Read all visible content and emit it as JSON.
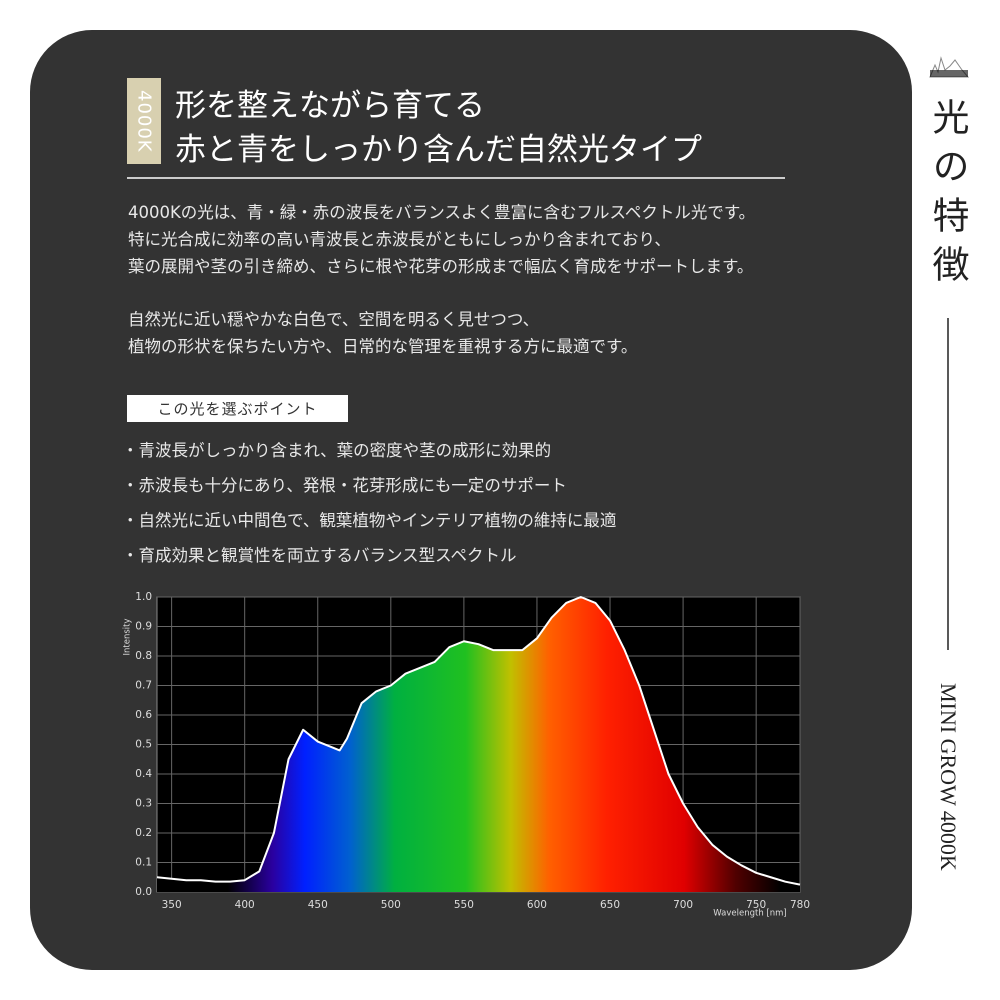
{
  "badge": "4000K",
  "title": [
    "形を整えながら育てる",
    "赤と青をしっかり含んだ自然光タイプ"
  ],
  "paragraphs": [
    [
      "4000Kの光は、青・緑・赤の波長をバランスよく豊富に含むフルスペクトル光です。",
      "特に光合成に効率の高い青波長と赤波長がともにしっかり含まれており、",
      "葉の展開や茎の引き締め、さらに根や花芽の形成まで幅広く育成をサポートします。"
    ],
    [
      "自然光に近い穏やかな白色で、空間を明るく見せつつ、",
      "植物の形状を保ちたい方や、日常的な管理を重視する方に最適です。"
    ]
  ],
  "points_label": "この光を選ぶポイント",
  "points": [
    "・青波長がしっかり含まれ、葉の密度や茎の成形に効果的",
    "・赤波長も十分にあり、発根・花芽形成にも一定のサポート",
    "・自然光に近い中間色で、観葉植物やインテリア植物の維持に最適",
    "・育成効果と観賞性を両立するバランス型スペクトル"
  ],
  "side_title": "光の特徴",
  "side_label": "MINI GROW 4000K",
  "chart_data": {
    "type": "area",
    "x_label": "Wavelength [nm]",
    "y_label": "Intensity",
    "x": [
      340,
      350,
      360,
      370,
      380,
      390,
      400,
      410,
      420,
      430,
      440,
      450,
      460,
      465,
      470,
      480,
      490,
      500,
      510,
      520,
      530,
      540,
      550,
      560,
      570,
      580,
      590,
      600,
      610,
      620,
      630,
      640,
      650,
      660,
      670,
      680,
      690,
      700,
      710,
      720,
      730,
      740,
      750,
      760,
      770,
      780
    ],
    "values": [
      0.05,
      0.045,
      0.04,
      0.04,
      0.035,
      0.035,
      0.04,
      0.07,
      0.2,
      0.45,
      0.55,
      0.51,
      0.49,
      0.48,
      0.52,
      0.64,
      0.68,
      0.7,
      0.74,
      0.76,
      0.78,
      0.83,
      0.85,
      0.84,
      0.82,
      0.82,
      0.82,
      0.86,
      0.93,
      0.98,
      1.0,
      0.98,
      0.92,
      0.82,
      0.7,
      0.55,
      0.4,
      0.3,
      0.22,
      0.16,
      0.12,
      0.09,
      0.065,
      0.05,
      0.035,
      0.025
    ],
    "xlim": [
      340,
      780
    ],
    "ylim": [
      0,
      1
    ],
    "xticks": [
      350,
      400,
      450,
      500,
      550,
      600,
      650,
      700,
      750,
      780
    ],
    "yticks": [
      {
        "value": 0,
        "label": "0.0"
      },
      0.1,
      0.2,
      0.3,
      0.4,
      0.5,
      0.6,
      0.7,
      0.8,
      0.9,
      {
        "value": 1,
        "label": "1.0"
      }
    ],
    "grid": true
  }
}
